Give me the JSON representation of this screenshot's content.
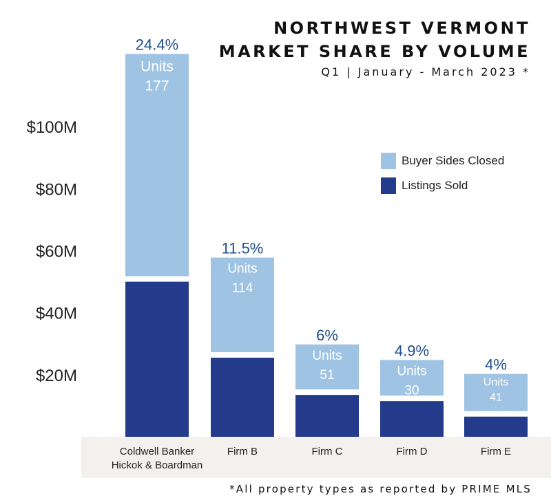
{
  "title_line1": "NORTHWEST VERMONT",
  "title_line2": "MARKET SHARE BY VOLUME",
  "subtitle": "Q1 | January - March 2023 *",
  "footnote": "*All property types as reported by PRIME MLS",
  "colors": {
    "buyer_sides": "#9fc3e3",
    "listings_sold": "#243a8a",
    "percent_text": "#1f4e8c",
    "axis_text": "#222222",
    "category_band": "#f2f1ee"
  },
  "chart_data": {
    "type": "bar",
    "stacked": true,
    "categories": [
      "Coldwell Banker Hickok & Boardman",
      "Firm B",
      "Firm C",
      "Firm D",
      "Firm E"
    ],
    "category_label_lines": [
      [
        "Coldwell Banker",
        "Hickok & Boardman"
      ],
      [
        "Firm B"
      ],
      [
        "Firm C"
      ],
      [
        "Firm D"
      ],
      [
        "Firm E"
      ]
    ],
    "series": [
      {
        "name": "Listings Sold",
        "values": [
          50,
          25.5,
          13.5,
          11.5,
          6.5
        ]
      },
      {
        "name": "Buyer Sides Closed",
        "values": [
          71.7,
          30.5,
          14.5,
          11.5,
          12
        ]
      }
    ],
    "percent_labels": [
      "24.4%",
      "11.5%",
      "6%",
      "4.9%",
      "4%"
    ],
    "units_label": "Units",
    "units": [
      "177",
      "114",
      "51",
      "30",
      "41"
    ],
    "y_ticks": [
      20,
      40,
      60,
      80,
      100
    ],
    "y_tick_labels": [
      "$20M",
      "$40M",
      "$60M",
      "$80M",
      "$100M"
    ],
    "ylim": [
      0,
      122
    ],
    "legend_position": "right",
    "grid": false
  }
}
